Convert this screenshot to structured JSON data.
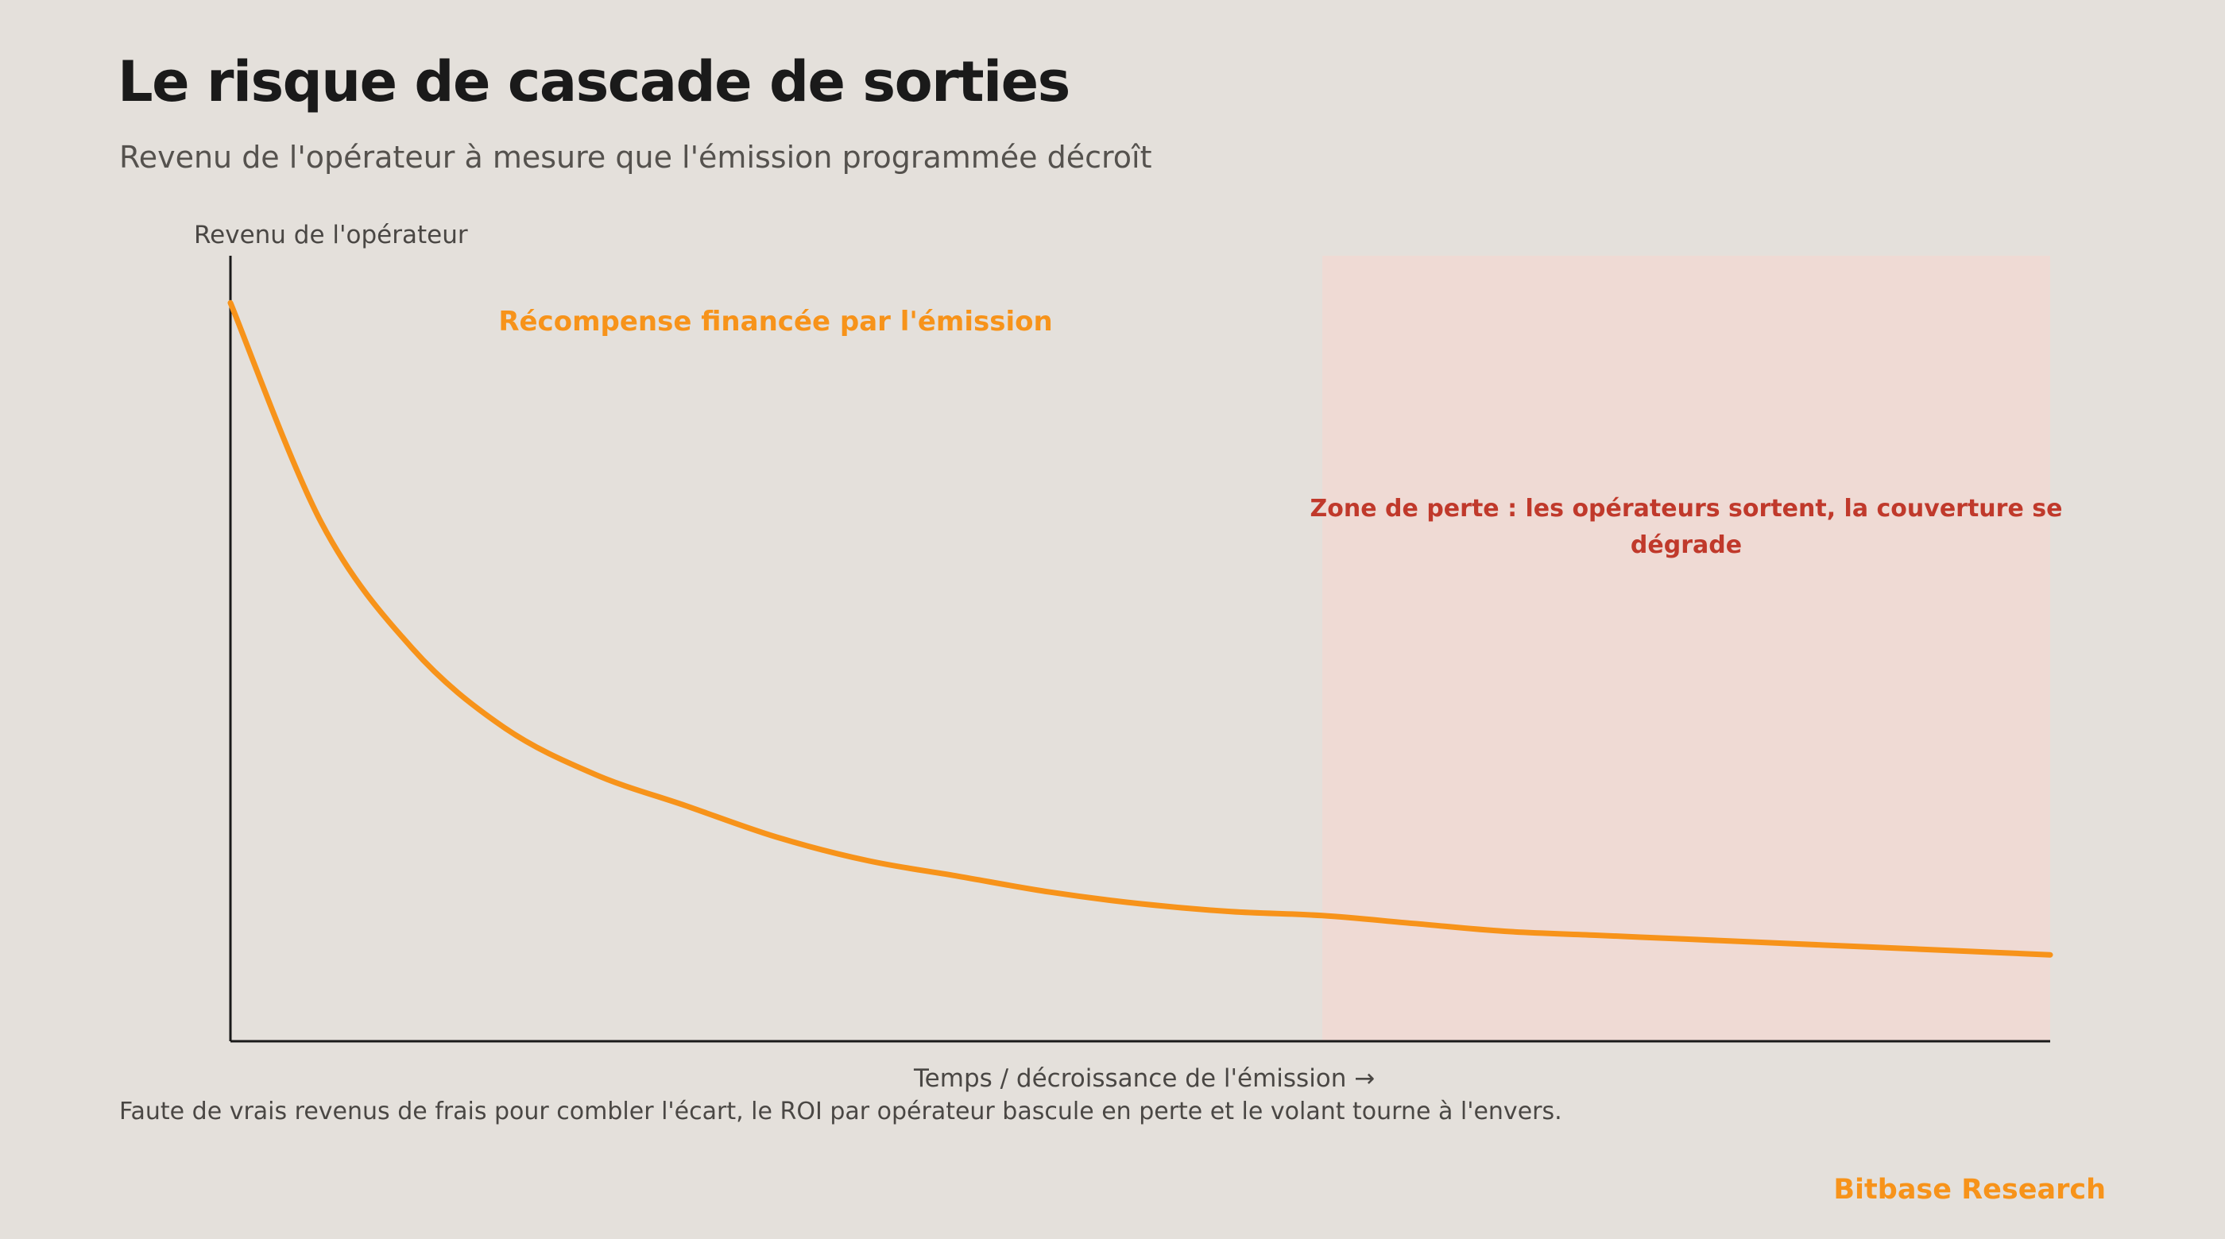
{
  "header": {
    "title": "Le risque de cascade de sorties",
    "subtitle": "Revenu de l'opérateur à mesure que l'émission programmée décroît"
  },
  "footer": {
    "note": "Faute de vrais revenus de frais pour combler l'écart, le ROI par opérateur bascule en perte et le volant tourne à l'envers.",
    "brand": "Bitbase Research"
  },
  "colors": {
    "background": "#e4e0db",
    "curve": "#f7931a",
    "loss_zone_fill": "#efdad4",
    "loss_text": "#c0392b",
    "axis": "#1a1a1a"
  },
  "chart_data": {
    "type": "line",
    "xlabel": "Temps / décroissance de l'émission →",
    "ylabel": "Revenu de l'opérateur",
    "xlim": [
      0,
      1
    ],
    "ylim": [
      0,
      1
    ],
    "axes_ticks": false,
    "grid": false,
    "series": [
      {
        "x": [
          0.0,
          0.05,
          0.1,
          0.15,
          0.2,
          0.25,
          0.3,
          0.35,
          0.4,
          0.45,
          0.5,
          0.55,
          0.6,
          0.65,
          0.7,
          0.75,
          0.8,
          0.85,
          0.9,
          0.95,
          1.0
        ],
        "y": [
          0.94,
          0.66,
          0.5,
          0.4,
          0.34,
          0.3,
          0.26,
          0.23,
          0.21,
          0.19,
          0.175,
          0.165,
          0.16,
          0.15,
          0.14,
          0.135,
          0.13,
          0.125,
          0.12,
          0.115,
          0.11
        ]
      }
    ],
    "shaded_region": {
      "x_start": 0.6,
      "x_end": 1.0
    },
    "annotations": {
      "emission": "Récompense financée par l'émission",
      "loss_line1": "Zone de perte : les opérateurs sortent, la couverture se",
      "loss_line2": "dégrade"
    }
  }
}
